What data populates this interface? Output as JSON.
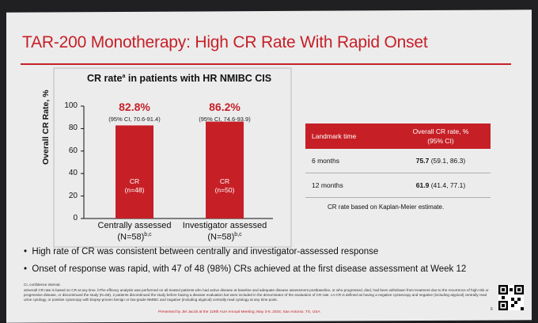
{
  "slide": {
    "title": "TAR-200 Monotherapy: High CR Rate With Rapid Onset",
    "accent_color": "#c62026",
    "background_color": "#ececed"
  },
  "chart_data": {
    "type": "bar",
    "title": "CR rate",
    "title_superscript": "a",
    "title_suffix": " in patients with HR NMIBC CIS",
    "ylabel": "Overall CR Rate, %",
    "ylim": [
      0,
      100
    ],
    "yticks": [
      "0",
      "20",
      "40",
      "60",
      "80",
      "100"
    ],
    "categories": [
      {
        "label": "Centrally assessed",
        "sublabel": "(N=58)",
        "sup": "b,c"
      },
      {
        "label": "Investigator assessed",
        "sublabel": "(N=58)",
        "sup": "b,c"
      }
    ],
    "values": [
      82.8,
      86.2
    ],
    "value_labels": [
      "82.8%",
      "86.2%"
    ],
    "ci_labels": [
      "(95% CI, 70.6-91.4)",
      "(95% CI, 74.6-93.9)"
    ],
    "bar_text": [
      [
        "CR",
        "(n=48)"
      ],
      [
        "CR",
        "(n=50)"
      ]
    ],
    "bar_color": "#c62026"
  },
  "landmark_table": {
    "headers": [
      "Landmark time",
      "Overall CR rate, %",
      "(95% CI)"
    ],
    "rows": [
      {
        "time": "6 months",
        "rate": "75.7",
        "ci": "(59.1, 86.3)"
      },
      {
        "time": "12 months",
        "rate": "61.9",
        "ci": "(41.4, 77.1)"
      }
    ],
    "note": "CR rate based on Kaplan-Meier estimate."
  },
  "bullets": [
    "High rate of CR was consistent between centrally and investigator-assessed response",
    "Onset of response was rapid, with 47 of 48 (98%) CRs achieved at the first disease assessment at Week 12"
  ],
  "footnotes": [
    "CI, confidence interval.",
    "aOverall CR rate is based on CR at any time. bThe efficacy analysis was performed on all treated patients who had active disease at baseline and adequate disease assessment postbaseline, or who progressed, died, had been withdrawn from treatment due to the recurrence of high-risk or progressive disease, or discontinued the study (N=58). 2 patients discontinued the study before having a disease evaluation but were included in the denominator of the evaluation of CR rate. cA CR is defined as having a negative cystoscopy and negative (including atypical) centrally read urine cytology, or positive cytoscopy with biopsy-proven benign or low-grade NMIBC and negative (including atypical) centrally read cytology at any time point."
  ],
  "presented_by": "Presented by JM Jacob at the 119th AUA Annual Meeting; May 3-6, 2024; San Antonio, TX, USA",
  "page_number": "6"
}
